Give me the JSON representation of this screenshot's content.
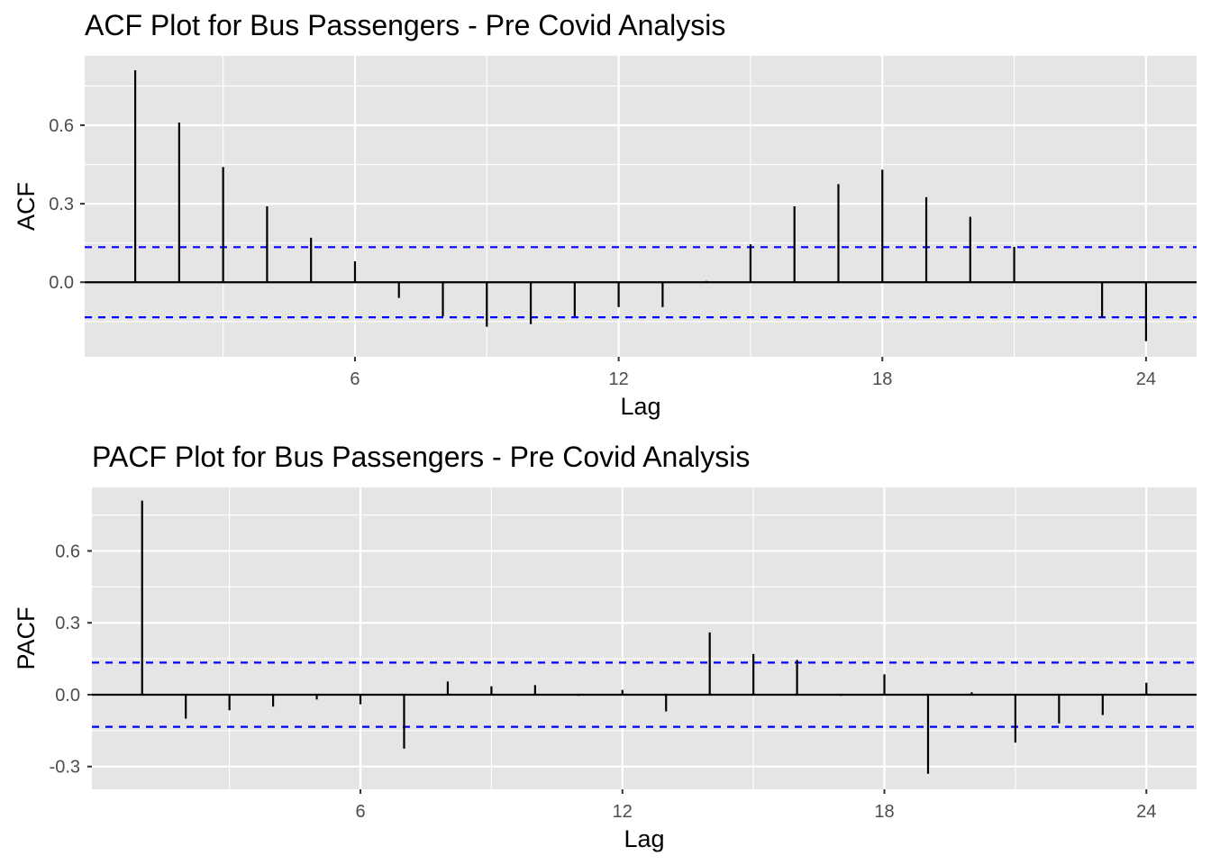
{
  "chart_data": [
    {
      "type": "bar",
      "title": "ACF Plot for Bus Passengers - Pre Covid Analysis",
      "xlabel": "Lag",
      "ylabel": "ACF",
      "x": [
        1,
        2,
        3,
        4,
        5,
        6,
        7,
        8,
        9,
        10,
        11,
        12,
        13,
        14,
        15,
        16,
        17,
        18,
        19,
        20,
        21,
        22,
        23,
        24
      ],
      "values": [
        0.81,
        0.61,
        0.44,
        0.29,
        0.17,
        0.08,
        -0.06,
        -0.13,
        -0.17,
        -0.16,
        -0.13,
        -0.095,
        -0.095,
        0.005,
        0.145,
        0.29,
        0.375,
        0.43,
        0.325,
        0.25,
        0.135,
        0.0,
        -0.135,
        -0.225
      ],
      "confidence_bound": 0.134,
      "xticks": [
        6,
        12,
        18,
        24
      ],
      "yticks": [
        0.0,
        0.3,
        0.6
      ],
      "ytick_labels": [
        "0.0",
        "0.3",
        "0.6"
      ],
      "xlim": [
        -0.15,
        25.15
      ],
      "ylim": [
        -0.285,
        0.865
      ],
      "colors": {
        "bar": "#000000",
        "ci": "#0000ff",
        "panel": "#e5e5e5",
        "grid": "#ffffff"
      }
    },
    {
      "type": "bar",
      "title": "PACF Plot for Bus Passengers - Pre Covid Analysis",
      "xlabel": "Lag",
      "ylabel": "PACF",
      "x": [
        1,
        2,
        3,
        4,
        5,
        6,
        7,
        8,
        9,
        10,
        11,
        12,
        13,
        14,
        15,
        16,
        17,
        18,
        19,
        20,
        21,
        22,
        23,
        24
      ],
      "values": [
        0.81,
        -0.1,
        -0.065,
        -0.05,
        -0.02,
        -0.04,
        -0.225,
        0.055,
        0.035,
        0.04,
        -0.005,
        0.02,
        -0.07,
        0.26,
        0.17,
        0.145,
        -0.005,
        0.085,
        -0.33,
        0.01,
        -0.2,
        -0.12,
        -0.085,
        0.05
      ],
      "confidence_bound": 0.134,
      "xticks": [
        6,
        12,
        18,
        24
      ],
      "yticks": [
        -0.3,
        0.0,
        0.3,
        0.6
      ],
      "ytick_labels": [
        "-0.3",
        "0.0",
        "0.3",
        "0.6"
      ],
      "xlim": [
        -0.15,
        25.15
      ],
      "ylim": [
        -0.395,
        0.865
      ],
      "colors": {
        "bar": "#000000",
        "ci": "#0000ff",
        "panel": "#e5e5e5",
        "grid": "#ffffff"
      }
    }
  ]
}
